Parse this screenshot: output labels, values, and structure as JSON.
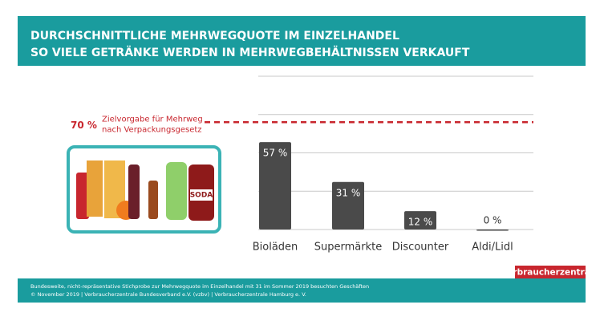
{
  "chart_data": {
    "type": "bar",
    "title": [
      "DURCHSCHNITTLICHE MEHRWEGQUOTE IM EINZELHANDEL",
      "SO VIELE GETRÄNKE WERDEN IN MEHRWEGBEHÄLTNISSEN VERKAUFT"
    ],
    "categories": [
      "Bioläden",
      "Supermärkte",
      "Discounter",
      "Aldi/Lidl"
    ],
    "values": [
      57,
      31,
      12,
      0
    ],
    "value_labels": [
      "57 %",
      "31 %",
      "12 %",
      "0 %"
    ],
    "color": "#4a4a4a",
    "ylim": [
      0,
      100
    ],
    "yticks": [
      0,
      25,
      50,
      75,
      100
    ],
    "grid": true,
    "target": {
      "value": 70,
      "label": "70 %",
      "text": [
        "Zielvorgabe für Mehrweg",
        "nach Verpackungsgesetz"
      ],
      "color": "#c8262e"
    },
    "footnote": [
      "Bundesweite, nicht-repräsentative Stichprobe zur Mehrwegquote im Einzelhandel  mit 31 im Sommer 2019 besuchten Geschäften",
      "© November 2019 | Verbraucherzentrale Bundesverband e.V. (vzbv) | Verbraucherzentrale Hamburg e. V."
    ],
    "logo": "verbraucherzentrale"
  }
}
